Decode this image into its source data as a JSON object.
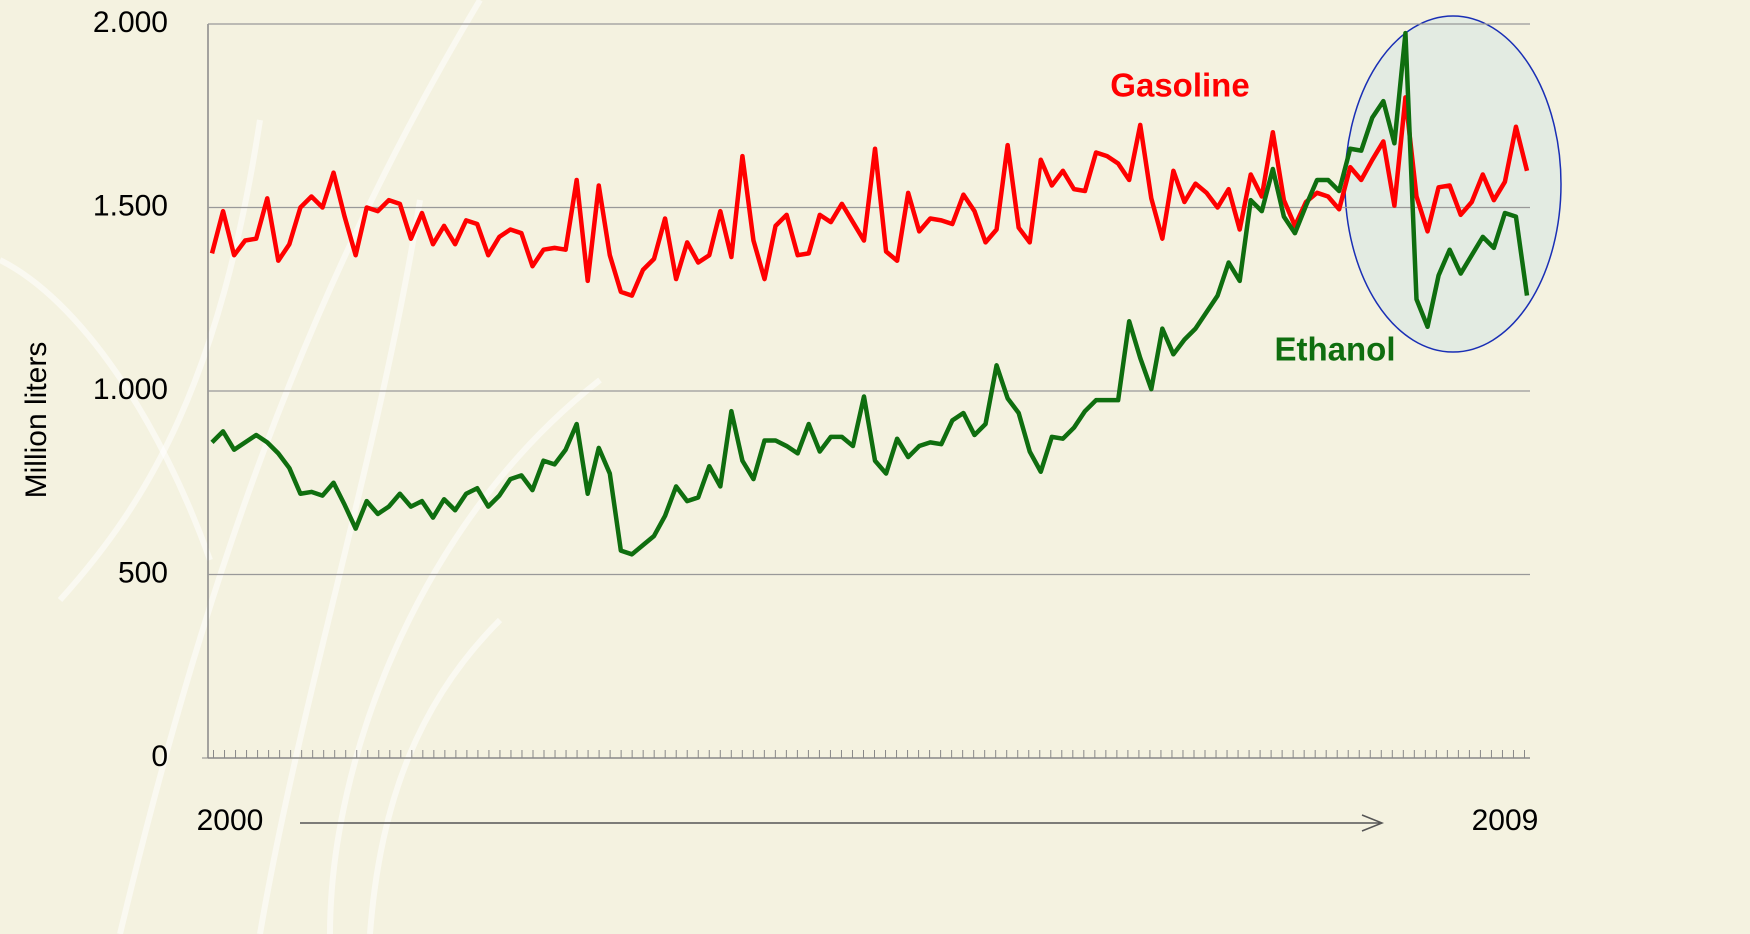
{
  "chart_data": {
    "type": "line",
    "ylabel": "Million liters",
    "categories": [
      "2000",
      null,
      null,
      null,
      null,
      null,
      null,
      null,
      null,
      null,
      null,
      null,
      null,
      null,
      null,
      null,
      null,
      null,
      null,
      null,
      null,
      null,
      null,
      null,
      null,
      null,
      null,
      null,
      null,
      null,
      null,
      null,
      null,
      null,
      null,
      null,
      null,
      null,
      null,
      null,
      null,
      null,
      null,
      null,
      null,
      null,
      null,
      null,
      null,
      null,
      null,
      null,
      null,
      null,
      null,
      null,
      null,
      null,
      null,
      null,
      null,
      null,
      null,
      null,
      null,
      null,
      null,
      null,
      null,
      null,
      null,
      null,
      null,
      null,
      null,
      null,
      null,
      null,
      null,
      null,
      null,
      null,
      null,
      null,
      null,
      null,
      null,
      null,
      null,
      null,
      null,
      null,
      null,
      null,
      null,
      null,
      null,
      null,
      null,
      null,
      null,
      null,
      null,
      null,
      null,
      null,
      null,
      null,
      null,
      null,
      null,
      null,
      null,
      null,
      null,
      null,
      null,
      null,
      null,
      "2009"
    ],
    "series": [
      {
        "name": "Gasoline",
        "color": "#ff0000",
        "values": [
          1375,
          1490,
          1370,
          1410,
          1415,
          1525,
          1355,
          1400,
          1500,
          1530,
          1500,
          1595,
          1475,
          1370,
          1500,
          1490,
          1520,
          1510,
          1415,
          1485,
          1400,
          1450,
          1400,
          1465,
          1455,
          1370,
          1420,
          1440,
          1430,
          1340,
          1385,
          1390,
          1385,
          1575,
          1300,
          1560,
          1370,
          1270,
          1260,
          1330,
          1360,
          1470,
          1305,
          1405,
          1350,
          1370,
          1490,
          1365,
          1640,
          1410,
          1305,
          1450,
          1480,
          1370,
          1375,
          1480,
          1460,
          1510,
          1460,
          1410,
          1660,
          1380,
          1355,
          1540,
          1435,
          1470,
          1465,
          1455,
          1535,
          1490,
          1405,
          1440,
          1670,
          1445,
          1405,
          1630,
          1560,
          1600,
          1550,
          1545,
          1650,
          1640,
          1620,
          1575,
          1725,
          1525,
          1415,
          1600,
          1515,
          1565,
          1540,
          1500,
          1550,
          1440,
          1590,
          1530,
          1705,
          1520,
          1450,
          1515,
          1540,
          1530,
          1495,
          1610,
          1575,
          1630,
          1680,
          1505,
          1800,
          1530,
          1435,
          1555,
          1560,
          1480,
          1515,
          1590,
          1520,
          1570,
          1720,
          1600
        ]
      },
      {
        "name": "Ethanol",
        "color": "#0f6e0f",
        "values": [
          860,
          890,
          840,
          860,
          880,
          860,
          830,
          790,
          720,
          725,
          715,
          750,
          690,
          625,
          700,
          665,
          685,
          720,
          685,
          700,
          655,
          705,
          675,
          720,
          735,
          685,
          715,
          760,
          770,
          730,
          810,
          800,
          840,
          910,
          720,
          845,
          775,
          565,
          555,
          580,
          605,
          660,
          740,
          700,
          710,
          795,
          740,
          945,
          810,
          760,
          865,
          865,
          850,
          830,
          910,
          835,
          875,
          875,
          850,
          985,
          810,
          775,
          870,
          820,
          850,
          860,
          855,
          920,
          940,
          880,
          910,
          1070,
          980,
          940,
          835,
          780,
          875,
          870,
          900,
          945,
          975,
          975,
          975,
          1190,
          1090,
          1005,
          1170,
          1100,
          1140,
          1170,
          1215,
          1260,
          1350,
          1300,
          1520,
          1490,
          1605,
          1475,
          1430,
          1505,
          1575,
          1575,
          1545,
          1660,
          1655,
          1745,
          1790,
          1675,
          1975,
          1250,
          1175,
          1315,
          1385,
          1320,
          1370,
          1420,
          1390,
          1485,
          1475,
          1260
        ]
      }
    ],
    "ylim": [
      0,
      2000
    ],
    "yticks": [
      0,
      500,
      {
        "value": 1000,
        "label": "1.000"
      },
      {
        "value": 1500,
        "label": "1.500"
      },
      {
        "value": 2000,
        "label": "2.000"
      }
    ],
    "grid": true
  }
}
